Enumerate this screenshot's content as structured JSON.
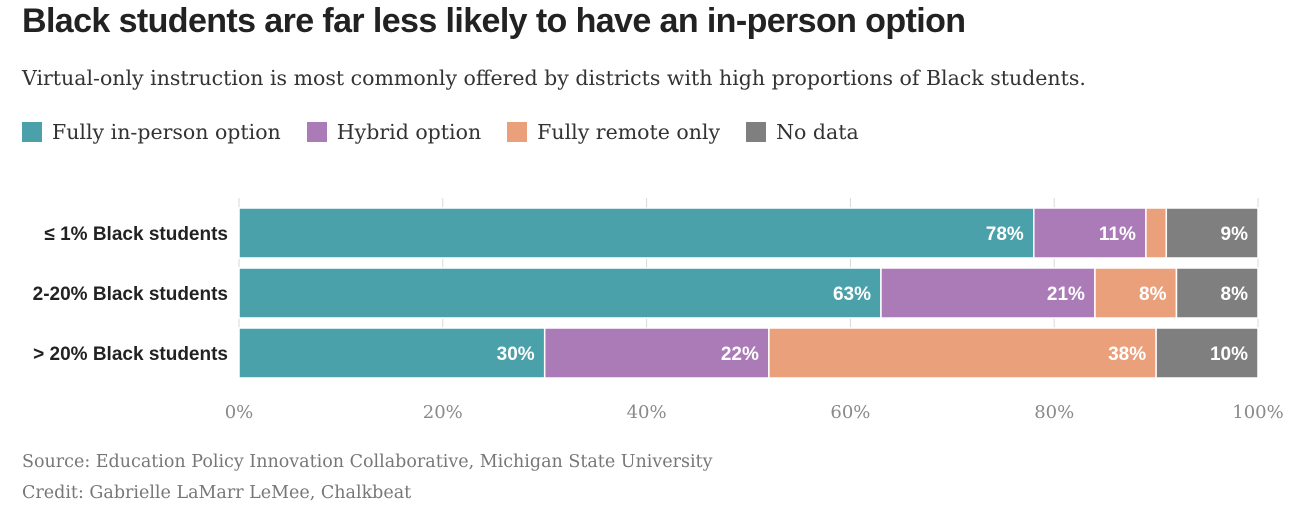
{
  "title": "Black students are far less likely to have an in-person option",
  "subtitle": "Virtual-only instruction is most commonly offered by districts with high proportions of Black students.",
  "source": "Source: Education Policy Innovation Collaborative, Michigan State University",
  "credit": "Credit: Gabrielle LaMarr LeMee, Chalkbeat",
  "chart_data": {
    "type": "bar",
    "orientation": "horizontal",
    "stacked": true,
    "categories": [
      "≤ 1% Black students",
      "2-20% Black students",
      "> 20% Black students"
    ],
    "series": [
      {
        "name": "Fully in-person option",
        "color": "#4aa1a9",
        "values": [
          78,
          63,
          30
        ],
        "labels": [
          "78%",
          "63%",
          "30%"
        ]
      },
      {
        "name": "Hybrid option",
        "color": "#ab7bb8",
        "values": [
          11,
          21,
          22
        ],
        "labels": [
          "11%",
          "21%",
          "22%"
        ]
      },
      {
        "name": "Fully remote only",
        "color": "#eba07c",
        "values": [
          2,
          8,
          38
        ],
        "labels": [
          "",
          "8%",
          "38%"
        ]
      },
      {
        "name": "No data",
        "color": "#7f7f7f",
        "values": [
          9,
          8,
          10
        ],
        "labels": [
          "9%",
          "8%",
          "10%"
        ]
      }
    ],
    "xlim": [
      0,
      100
    ],
    "xticks": [
      "0%",
      "20%",
      "40%",
      "60%",
      "80%",
      "100%"
    ],
    "grid": true,
    "legend": "top-left"
  }
}
